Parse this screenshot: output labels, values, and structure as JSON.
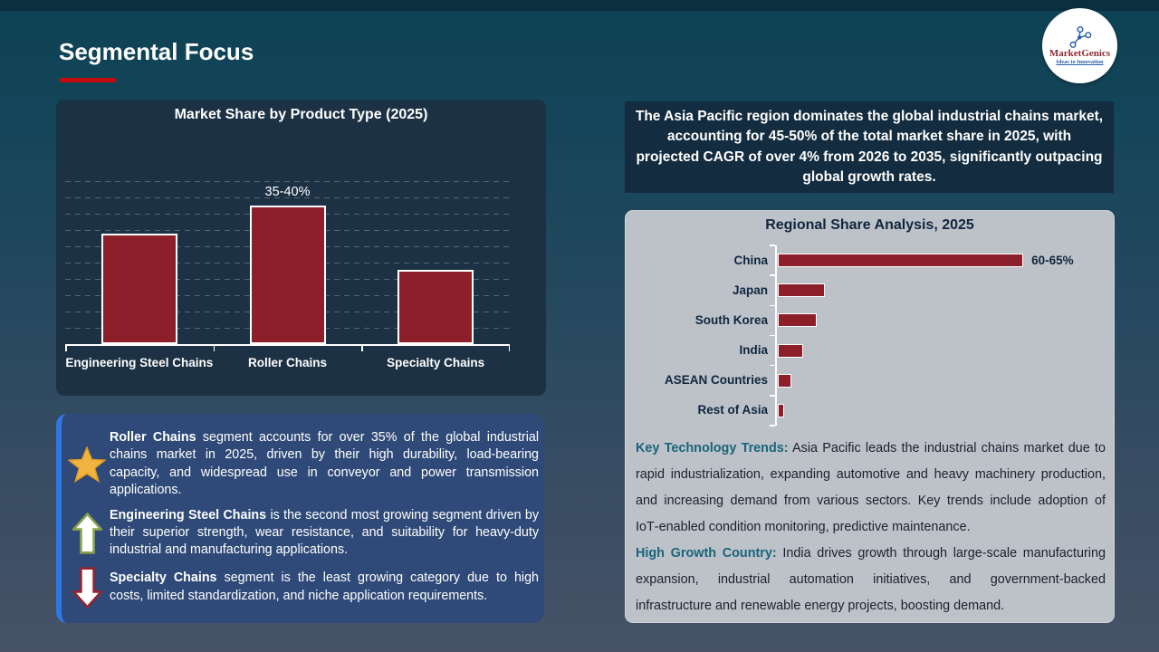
{
  "header": {
    "title": "Segmental Focus"
  },
  "logo": {
    "brand": "MarketGenics",
    "tagline": "Ideas to Innovation"
  },
  "colors": {
    "bar_red": "#8D1F2A",
    "panel_navy": "#1D3144",
    "callout_navy": "#142C3F",
    "blue_panel": "#2F4A78",
    "accent_blue": "#2F77E3",
    "gray_panel": "#BDC2C9",
    "teal_label": "#19647A",
    "dark_text": "#10263E",
    "title_underline_red": "#C30B0B",
    "star_gold": "#F2B440"
  },
  "chart_data": [
    {
      "type": "bar",
      "title": "Market Share by Product Type (2025)",
      "categories": [
        "Engineering Steel Chains",
        "Roller Chains",
        "Specialty Chains"
      ],
      "values": [
        30,
        37.5,
        20
      ],
      "unit": "%",
      "ylim": [
        0,
        45
      ],
      "grid": "dashed-horizontal",
      "legend": "none",
      "data_labels": [
        null,
        "35-40%",
        null
      ]
    },
    {
      "type": "bar",
      "orientation": "horizontal",
      "title": "Regional Share Analysis, 2025",
      "categories": [
        "China",
        "Japan",
        "South Korea",
        "India",
        "ASEAN Countries",
        "Rest of Asia"
      ],
      "values": [
        62.5,
        12,
        10,
        6.5,
        3.5,
        1.5
      ],
      "unit": "%",
      "xlim": [
        0,
        65
      ],
      "grid": "none",
      "legend": "none",
      "data_labels": [
        "60-65%",
        null,
        null,
        null,
        null,
        null
      ]
    }
  ],
  "asia_callout": "The Asia Pacific region dominates the global industrial chains market, accounting for 45-50% of the total market share in 2025, with projected CAGR of over 4% from 2026 to 2035, significantly outpacing global growth rates.",
  "segment_notes": [
    {
      "icon": "star",
      "lead": "Roller Chains",
      "text": " segment accounts for over 35% of the global industrial chains market in 2025, driven by their high durability, load-bearing capacity, and widespread use in conveyor and power transmission applications."
    },
    {
      "icon": "up-arrow",
      "lead": "Engineering Steel Chains",
      "text": " is the second most growing segment driven by their superior strength, wear resistance, and suitability for heavy-duty industrial and manufacturing applications."
    },
    {
      "icon": "down-arrow",
      "lead": "Specialty Chains",
      "text": " segment is the least growing category due to high costs, limited standardization, and niche application requirements."
    }
  ],
  "regional_notes": [
    {
      "lead": "Key Technology Trends:",
      "text": " Asia Pacific leads the industrial chains market due to rapid industrialization, expanding automotive and heavy machinery production, and increasing demand from various sectors. Key trends include adoption of IoT‑enabled condition monitoring, predictive maintenance."
    },
    {
      "lead": "High Growth Country:",
      "text": " India drives growth through large-scale manufacturing expansion, industrial automation initiatives, and government-backed infrastructure and renewable energy projects, boosting demand."
    }
  ]
}
